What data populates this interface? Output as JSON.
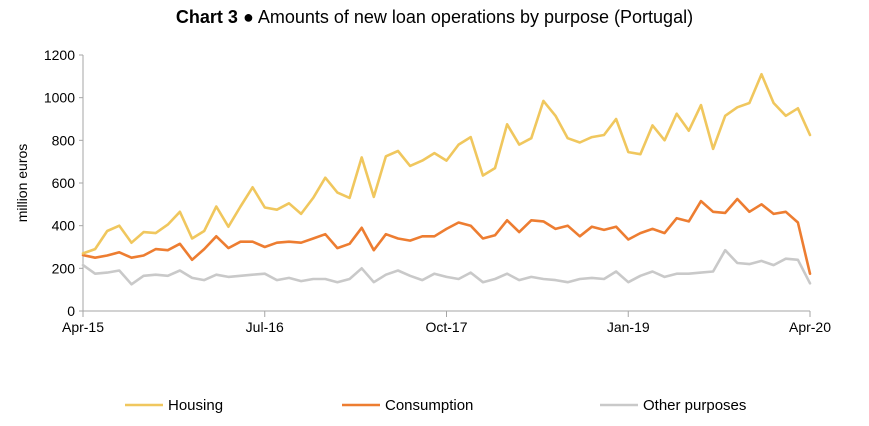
{
  "chart_data": {
    "type": "line",
    "title_bold": "Chart 3",
    "title_rest": " ● Amounts of new loan operations by purpose (Portugal)",
    "ylabel": "million euros",
    "xlabel": "",
    "ylim": [
      0,
      1200
    ],
    "yticks": [
      0,
      200,
      400,
      600,
      800,
      1000,
      1200
    ],
    "xtick_labels": [
      "Apr-15",
      "Jul-16",
      "Oct-17",
      "Jan-19",
      "Apr-20"
    ],
    "xtick_index": [
      0,
      15,
      30,
      45,
      60
    ],
    "x": [
      "Apr-15",
      "May-15",
      "Jun-15",
      "Jul-15",
      "Aug-15",
      "Sep-15",
      "Oct-15",
      "Nov-15",
      "Dec-15",
      "Jan-16",
      "Feb-16",
      "Mar-16",
      "Apr-16",
      "May-16",
      "Jun-16",
      "Jul-16",
      "Aug-16",
      "Sep-16",
      "Oct-16",
      "Nov-16",
      "Dec-16",
      "Jan-17",
      "Feb-17",
      "Mar-17",
      "Apr-17",
      "May-17",
      "Jun-17",
      "Jul-17",
      "Aug-17",
      "Sep-17",
      "Oct-17",
      "Nov-17",
      "Dec-17",
      "Jan-18",
      "Feb-18",
      "Mar-18",
      "Apr-18",
      "May-18",
      "Jun-18",
      "Jul-18",
      "Aug-18",
      "Sep-18",
      "Oct-18",
      "Nov-18",
      "Dec-18",
      "Jan-19",
      "Feb-19",
      "Mar-19",
      "Apr-19",
      "May-19",
      "Jun-19",
      "Jul-19",
      "Aug-19",
      "Sep-19",
      "Oct-19",
      "Nov-19",
      "Dec-19",
      "Jan-20",
      "Feb-20",
      "Mar-20",
      "Apr-20"
    ],
    "grid": false,
    "legend_position": "bottom",
    "series": [
      {
        "name": "Housing",
        "color": "#f0c75e",
        "values": [
          270,
          290,
          375,
          400,
          320,
          370,
          365,
          405,
          465,
          340,
          375,
          490,
          395,
          490,
          580,
          485,
          475,
          505,
          455,
          530,
          625,
          555,
          530,
          720,
          535,
          725,
          750,
          680,
          705,
          740,
          705,
          780,
          815,
          635,
          670,
          875,
          780,
          810,
          985,
          915,
          810,
          790,
          815,
          825,
          900,
          745,
          735,
          870,
          800,
          925,
          845,
          965,
          760,
          915,
          955,
          975,
          1110,
          975,
          915,
          950,
          825
        ]
      },
      {
        "name": "Consumption",
        "color": "#ed7d31",
        "values": [
          262,
          250,
          260,
          275,
          250,
          260,
          290,
          285,
          315,
          240,
          290,
          350,
          295,
          325,
          325,
          300,
          320,
          325,
          320,
          340,
          360,
          295,
          315,
          390,
          285,
          360,
          340,
          330,
          350,
          350,
          385,
          415,
          400,
          340,
          355,
          425,
          370,
          425,
          420,
          385,
          400,
          350,
          395,
          380,
          395,
          335,
          365,
          385,
          365,
          435,
          420,
          515,
          465,
          460,
          525,
          465,
          500,
          455,
          465,
          415,
          175
        ]
      },
      {
        "name": "Other purposes",
        "color": "#c9c9c9",
        "values": [
          215,
          175,
          180,
          190,
          125,
          165,
          170,
          165,
          190,
          155,
          145,
          170,
          160,
          165,
          170,
          175,
          145,
          155,
          140,
          150,
          150,
          135,
          150,
          200,
          135,
          170,
          190,
          165,
          145,
          175,
          160,
          150,
          180,
          135,
          150,
          175,
          145,
          160,
          150,
          145,
          135,
          150,
          155,
          150,
          185,
          135,
          165,
          185,
          160,
          175,
          175,
          180,
          185,
          285,
          225,
          220,
          235,
          215,
          245,
          240,
          130
        ]
      }
    ]
  }
}
